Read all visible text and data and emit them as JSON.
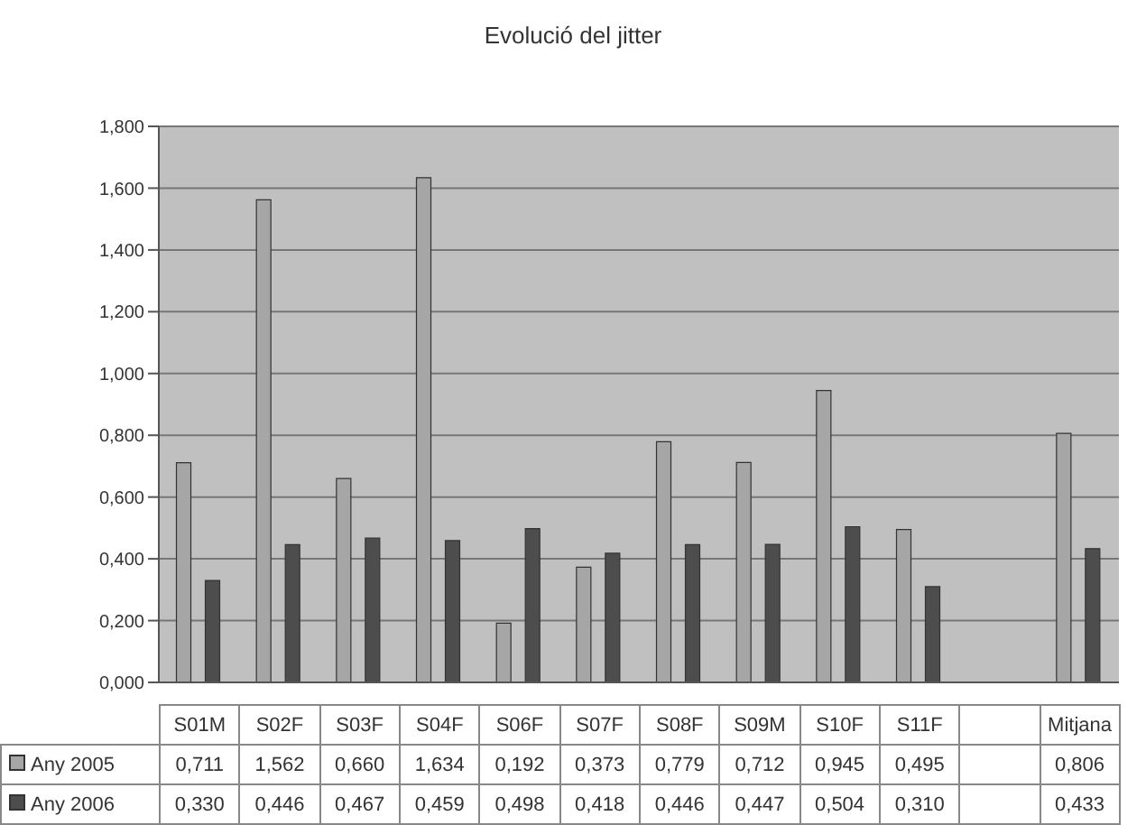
{
  "chart_data": {
    "type": "bar",
    "title": "Evolució del jitter",
    "categories": [
      "S01M",
      "S02F",
      "S03F",
      "S04F",
      "S06F",
      "S07F",
      "S08F",
      "S09M",
      "S10F",
      "S11F",
      null,
      "Mitjana"
    ],
    "series": [
      {
        "name": "Any 2005",
        "color": "#a6a6a6",
        "values": [
          0.711,
          1.562,
          0.66,
          1.634,
          0.192,
          0.373,
          0.779,
          0.712,
          0.945,
          0.495,
          null,
          0.806
        ],
        "value_labels": [
          "0,711",
          "1,562",
          "0,660",
          "1,634",
          "0,192",
          "0,373",
          "0,779",
          "0,712",
          "0,945",
          "0,495",
          null,
          "0,806"
        ]
      },
      {
        "name": "Any 2006",
        "color": "#4d4d4d",
        "values": [
          0.33,
          0.446,
          0.467,
          0.459,
          0.498,
          0.418,
          0.446,
          0.447,
          0.504,
          0.31,
          null,
          0.433
        ],
        "value_labels": [
          "0,330",
          "0,446",
          "0,467",
          "0,459",
          "0,498",
          "0,418",
          "0,446",
          "0,447",
          "0,504",
          "0,310",
          null,
          "0,433"
        ]
      }
    ],
    "ylim": [
      0,
      1.8
    ],
    "yticks": [
      {
        "value": 0,
        "label": "0,000"
      },
      {
        "value": 0.2,
        "label": "0,200"
      },
      {
        "value": 0.4,
        "label": "0,400"
      },
      {
        "value": 0.6,
        "label": "0,600"
      },
      {
        "value": 0.8,
        "label": "0,800"
      },
      {
        "value": 1.0,
        "label": "1,000"
      },
      {
        "value": 1.2,
        "label": "1,200"
      },
      {
        "value": 1.4,
        "label": "1,400"
      },
      {
        "value": 1.6,
        "label": "1,600"
      },
      {
        "value": 1.8,
        "label": "1,800"
      }
    ],
    "grid": "y",
    "legend": "bottom"
  }
}
